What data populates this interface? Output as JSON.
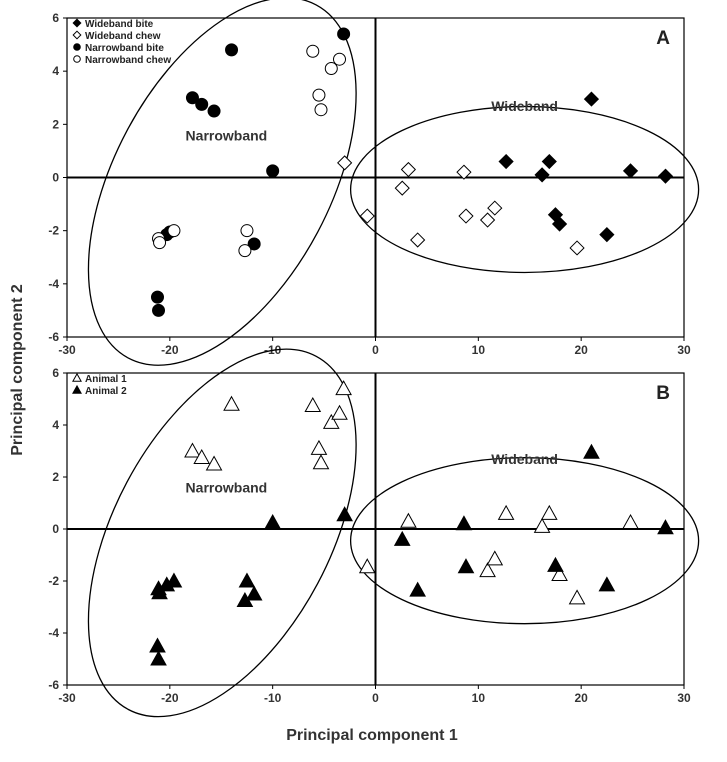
{
  "figure": {
    "ylabel": "Principal component 2",
    "xlabel": "Principal component 1"
  },
  "chart_data": [
    {
      "type": "scatter",
      "panel_label": "A",
      "xlim": [
        -30,
        30
      ],
      "ylim": [
        -6,
        6
      ],
      "x_ticks": [
        -30,
        -20,
        -10,
        0,
        10,
        20,
        30
      ],
      "y_ticks": [
        -6,
        -4,
        -2,
        0,
        2,
        4,
        6
      ],
      "grid": false,
      "legend_position": "top-left",
      "cluster_labels": [
        {
          "text": "Narrowband",
          "x": -14.5,
          "y": 1.4
        },
        {
          "text": "Wideband",
          "x": 14.5,
          "y": 2.5
        }
      ],
      "series": [
        {
          "name": "Wideband bite",
          "marker": "diamond",
          "fill": "#000000",
          "points": [
            [
              12.7,
              0.6
            ],
            [
              16.9,
              0.6
            ],
            [
              16.2,
              0.1
            ],
            [
              21.0,
              2.95
            ],
            [
              24.8,
              0.25
            ],
            [
              28.2,
              0.05
            ],
            [
              17.5,
              -1.4
            ],
            [
              17.9,
              -1.75
            ],
            [
              22.5,
              -2.15
            ]
          ]
        },
        {
          "name": "Wideband chew",
          "marker": "diamond",
          "fill": "#ffffff",
          "points": [
            [
              -3.0,
              0.55
            ],
            [
              3.2,
              0.3
            ],
            [
              2.6,
              -0.4
            ],
            [
              8.6,
              0.2
            ],
            [
              -0.8,
              -1.45
            ],
            [
              4.1,
              -2.35
            ],
            [
              8.8,
              -1.45
            ],
            [
              11.6,
              -1.15
            ],
            [
              10.9,
              -1.6
            ],
            [
              19.6,
              -2.65
            ]
          ]
        },
        {
          "name": "Narrowband bite",
          "marker": "circle",
          "fill": "#000000",
          "points": [
            [
              -14.0,
              4.8
            ],
            [
              -3.1,
              5.4
            ],
            [
              -17.8,
              3.0
            ],
            [
              -16.9,
              2.75
            ],
            [
              -15.7,
              2.5
            ],
            [
              -10.0,
              0.25
            ],
            [
              -20.3,
              -2.15
            ],
            [
              -20.0,
              -2.05
            ],
            [
              -11.8,
              -2.5
            ],
            [
              -21.2,
              -4.5
            ],
            [
              -21.1,
              -5.0
            ]
          ]
        },
        {
          "name": "Narrowband chew",
          "marker": "circle",
          "fill": "#ffffff",
          "points": [
            [
              -6.1,
              4.75
            ],
            [
              -4.3,
              4.1
            ],
            [
              -3.5,
              4.45
            ],
            [
              -5.5,
              3.1
            ],
            [
              -5.3,
              2.55
            ],
            [
              -19.6,
              -2.0
            ],
            [
              -21.1,
              -2.3
            ],
            [
              -21.0,
              -2.45
            ],
            [
              -12.5,
              -2.0
            ],
            [
              -12.7,
              -2.75
            ]
          ]
        }
      ],
      "ellipses": [
        {
          "label": "Narrowband",
          "center": [
            -14.9,
            -0.15
          ],
          "semi_axes_px": [
            108,
            200
          ],
          "rotation_deg": 28
        },
        {
          "label": "Wideband",
          "center": [
            14.5,
            -0.45
          ],
          "semi_axes_px": [
            174,
            83
          ],
          "rotation_deg": 0
        }
      ]
    },
    {
      "type": "scatter",
      "panel_label": "B",
      "xlim": [
        -30,
        30
      ],
      "ylim": [
        -6,
        6
      ],
      "x_ticks": [
        -30,
        -20,
        -10,
        0,
        10,
        20,
        30
      ],
      "y_ticks": [
        -6,
        -4,
        -2,
        0,
        2,
        4,
        6
      ],
      "grid": false,
      "legend_position": "top-left",
      "cluster_labels": [
        {
          "text": "Narrowband",
          "x": -14.5,
          "y": 1.4
        },
        {
          "text": "Wideband",
          "x": 14.5,
          "y": 2.5
        }
      ],
      "series": [
        {
          "name": "Animal 1",
          "marker": "triangle",
          "fill": "#ffffff",
          "points": [
            [
              -14.0,
              4.8
            ],
            [
              -3.1,
              5.4
            ],
            [
              -6.1,
              4.75
            ],
            [
              -4.3,
              4.1
            ],
            [
              -3.5,
              4.45
            ],
            [
              -5.5,
              3.1
            ],
            [
              -5.3,
              2.55
            ],
            [
              -17.8,
              3.0
            ],
            [
              -16.9,
              2.75
            ],
            [
              -15.7,
              2.5
            ],
            [
              3.2,
              0.3
            ],
            [
              12.7,
              0.6
            ],
            [
              16.9,
              0.6
            ],
            [
              16.2,
              0.1
            ],
            [
              24.8,
              0.25
            ],
            [
              -0.8,
              -1.45
            ],
            [
              10.9,
              -1.6
            ],
            [
              11.6,
              -1.15
            ],
            [
              17.9,
              -1.75
            ],
            [
              19.6,
              -2.65
            ]
          ]
        },
        {
          "name": "Animal 2",
          "marker": "triangle",
          "fill": "#000000",
          "points": [
            [
              21.0,
              2.95
            ],
            [
              -10.0,
              0.25
            ],
            [
              -3.0,
              0.55
            ],
            [
              8.6,
              0.2
            ],
            [
              28.2,
              0.05
            ],
            [
              2.6,
              -0.4
            ],
            [
              8.8,
              -1.45
            ],
            [
              17.5,
              -1.4
            ],
            [
              4.1,
              -2.35
            ],
            [
              22.5,
              -2.15
            ],
            [
              -21.1,
              -2.3
            ],
            [
              -21.0,
              -2.45
            ],
            [
              -20.3,
              -2.15
            ],
            [
              -19.6,
              -2.0
            ],
            [
              -12.5,
              -2.0
            ],
            [
              -12.7,
              -2.75
            ],
            [
              -11.8,
              -2.5
            ],
            [
              -21.2,
              -4.5
            ],
            [
              -21.1,
              -5.0
            ]
          ]
        }
      ],
      "ellipses": [
        {
          "label": "Narrowband",
          "center": [
            -14.9,
            -0.15
          ],
          "semi_axes_px": [
            108,
            200
          ],
          "rotation_deg": 28
        },
        {
          "label": "Wideband",
          "center": [
            14.5,
            -0.45
          ],
          "semi_axes_px": [
            174,
            83
          ],
          "rotation_deg": 0
        }
      ]
    }
  ]
}
